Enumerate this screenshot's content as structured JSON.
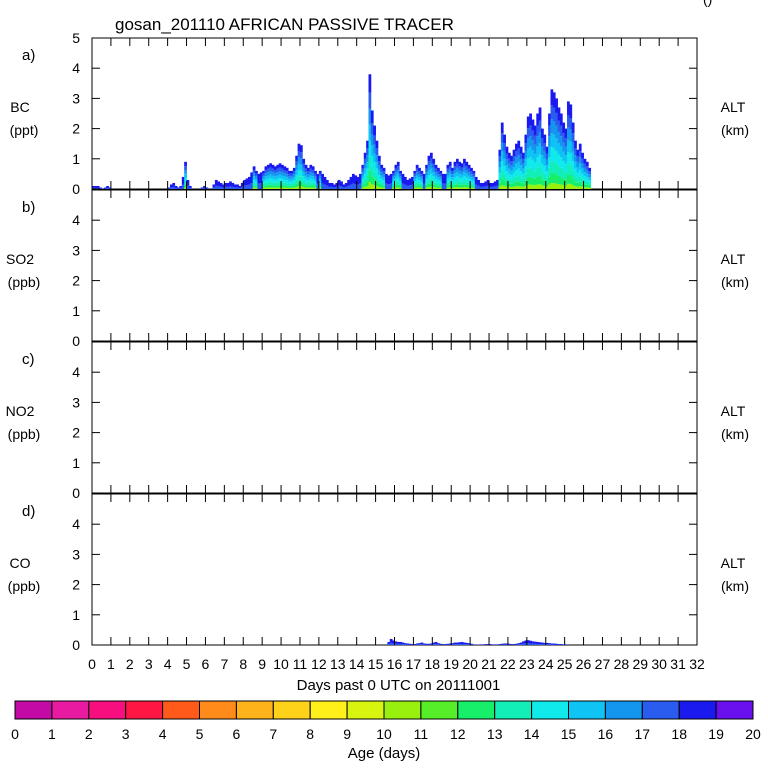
{
  "title": "gosan_201110 AFRICAN PASSIVE TRACER",
  "corner_mark": "()",
  "chart_data": [
    {
      "type": "bar",
      "panel_label": "a)",
      "ylabel": "BC",
      "yunit": "(ppt)",
      "right_label": "ALT",
      "right_unit": "(km)",
      "ylim": [
        0,
        5
      ],
      "yticks": [
        "0",
        "1",
        "2",
        "3",
        "4",
        "5"
      ],
      "xlim": [
        0,
        32
      ],
      "x_start": 0.0,
      "step_days": 0.125,
      "values": [
        0.1,
        0.1,
        0.1,
        0.05,
        0,
        0.05,
        0.1,
        0.05,
        0,
        0,
        0,
        0,
        0,
        0,
        0,
        0,
        0,
        0,
        0,
        0,
        0,
        0,
        0,
        0,
        0,
        0,
        0,
        0,
        0,
        0,
        0,
        0,
        0.05,
        0.15,
        0.2,
        0.1,
        0.05,
        0.1,
        0.4,
        0.9,
        0.3,
        0.1,
        0,
        0,
        0,
        0,
        0.05,
        0.1,
        0.05,
        0,
        0,
        0.15,
        0.3,
        0.25,
        0.2,
        0.15,
        0.2,
        0.2,
        0.25,
        0.2,
        0.15,
        0.15,
        0.1,
        0.2,
        0.3,
        0.35,
        0.4,
        0.55,
        0.75,
        0.6,
        0.5,
        0.55,
        0.6,
        0.75,
        0.8,
        0.85,
        0.8,
        0.75,
        0.8,
        0.85,
        0.8,
        0.75,
        0.7,
        0.6,
        0.6,
        0.7,
        1.1,
        1.5,
        1.45,
        1.0,
        0.8,
        0.7,
        0.8,
        0.75,
        0.6,
        0.5,
        0.6,
        0.5,
        0.4,
        0.3,
        0.2,
        0.2,
        0.15,
        0.2,
        0.3,
        0.25,
        0.15,
        0.2,
        0.3,
        0.4,
        0.5,
        0.45,
        0.4,
        0.5,
        0.8,
        1.2,
        1.6,
        3.8,
        2.6,
        2.1,
        1.6,
        1.1,
        0.8,
        0.7,
        0.5,
        0.45,
        0.5,
        0.6,
        0.8,
        0.9,
        0.6,
        0.5,
        0.4,
        0.3,
        0.35,
        0.4,
        0.6,
        0.8,
        0.7,
        0.6,
        0.5,
        0.8,
        1.1,
        1.2,
        1.0,
        0.8,
        0.7,
        0.6,
        0.5,
        0.5,
        0.8,
        0.9,
        0.7,
        0.9,
        1.0,
        0.9,
        0.85,
        1.0,
        0.9,
        0.8,
        0.7,
        0.6,
        0.4,
        0.3,
        0.2,
        0.2,
        0.25,
        0.3,
        0.2,
        0.2,
        0.25,
        0.3,
        1.3,
        2.2,
        1.8,
        1.4,
        1.2,
        1.1,
        1.3,
        1.5,
        1.6,
        1.4,
        1.2,
        1.8,
        2.4,
        2.5,
        2.3,
        2.1,
        2.5,
        2.7,
        2.0,
        1.8,
        1.4,
        2.5,
        3.3,
        3.2,
        3.0,
        2.7,
        2.5,
        2.2,
        2.0,
        2.9,
        2.8,
        2.2,
        1.6,
        1.3,
        1.5,
        1.2,
        1.0,
        0.9,
        0.7
      ]
    },
    {
      "type": "bar",
      "panel_label": "b)",
      "ylabel": "SO2",
      "yunit": "(ppb)",
      "right_label": "ALT",
      "right_unit": "(km)",
      "ylim": [
        0,
        5
      ],
      "yticks": [
        "0",
        "1",
        "2",
        "3",
        "4"
      ],
      "xlim": [
        0,
        32
      ],
      "x_start": 0.0,
      "step_days": 0.125,
      "values": []
    },
    {
      "type": "bar",
      "panel_label": "c)",
      "ylabel": "NO2",
      "yunit": "(ppb)",
      "right_label": "ALT",
      "right_unit": "(km)",
      "ylim": [
        0,
        5
      ],
      "yticks": [
        "0",
        "1",
        "2",
        "3",
        "4"
      ],
      "xlim": [
        0,
        32
      ],
      "x_start": 0.0,
      "step_days": 0.125,
      "values": []
    },
    {
      "type": "bar",
      "panel_label": "d)",
      "ylabel": "CO",
      "yunit": "(ppb)",
      "right_label": "ALT",
      "right_unit": "(km)",
      "ylim": [
        0,
        5
      ],
      "yticks": [
        "0",
        "1",
        "2",
        "3",
        "4"
      ],
      "xlim": [
        0,
        32
      ],
      "x_start": 15.625,
      "step_days": 0.125,
      "values": [
        0.1,
        0.2,
        0.15,
        0.12,
        0.1,
        0.1,
        0.08,
        0.06,
        0.05,
        0.04,
        0.03,
        0.03,
        0.05,
        0.06,
        0.08,
        0.05,
        0.04,
        0.04,
        0.05,
        0.08,
        0.1,
        0.06,
        0.04,
        0.03,
        0.03,
        0.04,
        0.05,
        0.06,
        0.08,
        0.08,
        0.09,
        0.1,
        0.08,
        0.07,
        0.06,
        0.04,
        0.02,
        0.01,
        0.01,
        0.02,
        0.02,
        0.03,
        0.03,
        0.03,
        0.02,
        0.02,
        0.02,
        0.03,
        0.04,
        0.05,
        0.05,
        0.04,
        0.03,
        0.03,
        0.04,
        0.06,
        0.08,
        0.12,
        0.15,
        0.16,
        0.14,
        0.12,
        0.11,
        0.1,
        0.09,
        0.08,
        0.07,
        0.07,
        0.06,
        0.05,
        0.05,
        0.04,
        0.03,
        0.03,
        0.02,
        0.02
      ]
    }
  ],
  "x_axis": {
    "ticks": [
      "0",
      "1",
      "2",
      "3",
      "4",
      "5",
      "6",
      "7",
      "8",
      "9",
      "10",
      "11",
      "12",
      "13",
      "14",
      "15",
      "16",
      "17",
      "18",
      "19",
      "20",
      "21",
      "22",
      "23",
      "24",
      "25",
      "26",
      "27",
      "28",
      "29",
      "30",
      "31",
      "32"
    ],
    "label": "Days past 0 UTC on 20111001"
  },
  "colorbar": {
    "label": "Age (days)",
    "ticks": [
      "0",
      "1",
      "2",
      "3",
      "4",
      "5",
      "6",
      "7",
      "8",
      "9",
      "10",
      "11",
      "12",
      "13",
      "14",
      "15",
      "16",
      "17",
      "18",
      "19",
      "20"
    ],
    "colors": [
      "#8b0a8b",
      "#c40aa6",
      "#e81aa2",
      "#f70f7f",
      "#ff1744",
      "#ff5a1a",
      "#ff8c1a",
      "#ffb31a",
      "#ffd21a",
      "#fff01a",
      "#d7f50f",
      "#99f00f",
      "#55ee28",
      "#17ee6a",
      "#13eeb8",
      "#10eaea",
      "#0fc3f5",
      "#1596ee",
      "#2a5cf0",
      "#1a1aef",
      "#6a10ee"
    ]
  }
}
